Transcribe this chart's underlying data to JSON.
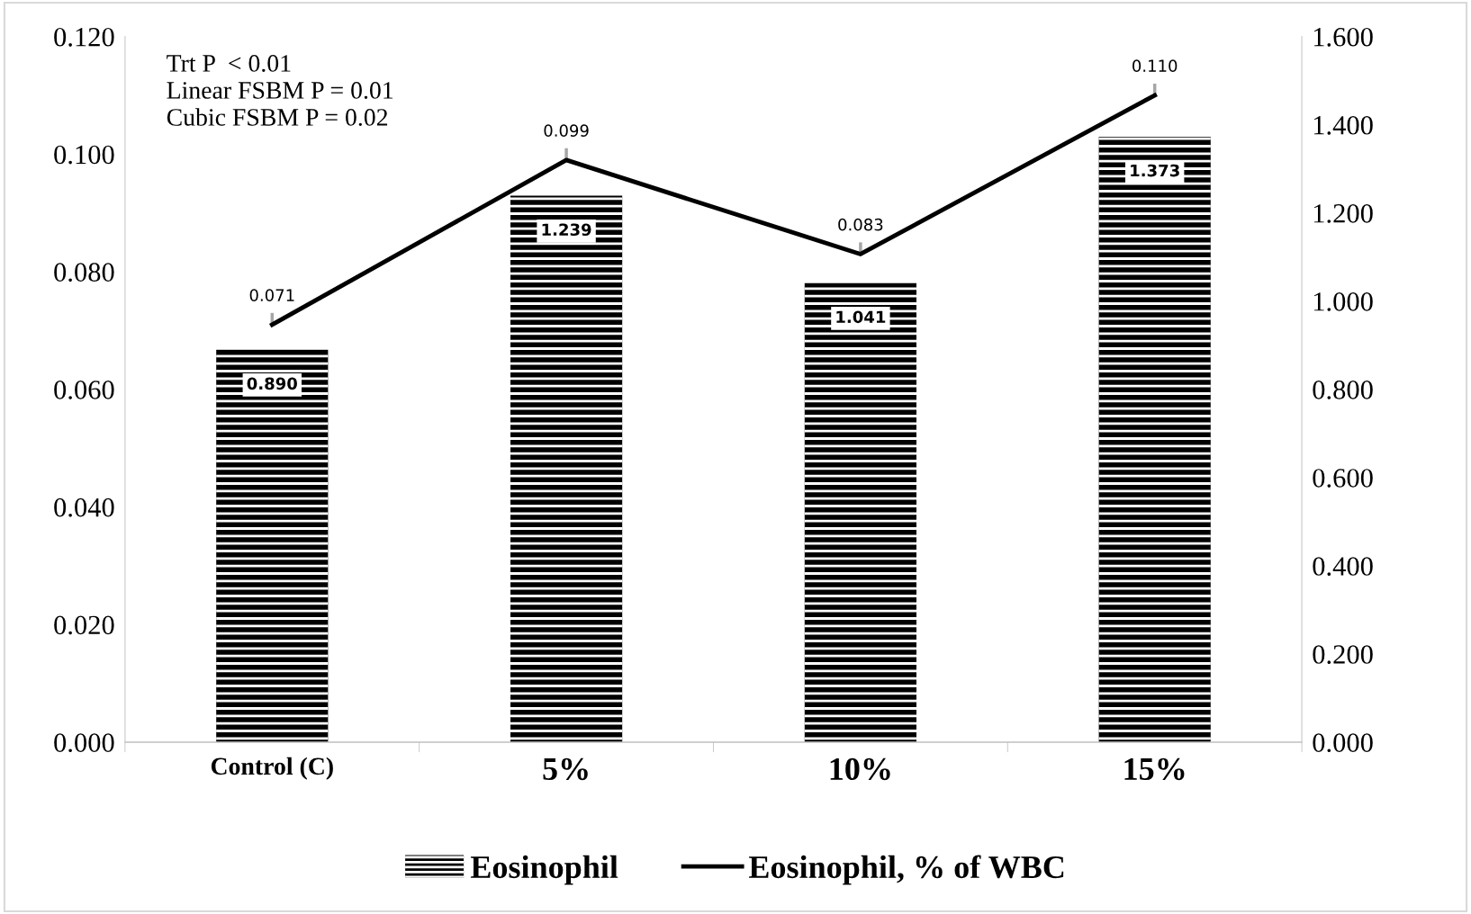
{
  "chart_data": {
    "type": "bar",
    "categories": [
      "Control (C)",
      "5%",
      "10%",
      "15%"
    ],
    "series": [
      {
        "name": "Eosinophil",
        "axis": "y2",
        "color": "#000000",
        "values": [
          0.89,
          1.239,
          1.041,
          1.373
        ],
        "value_labels": [
          "0.890",
          "1.239",
          "1.041",
          "1.373"
        ]
      },
      {
        "name": "Eosinophil, % of WBC",
        "type": "line",
        "color": "#000000",
        "values": [
          0.071,
          0.099,
          0.083,
          0.11
        ],
        "value_labels": [
          "0.071",
          "0.099",
          "0.083",
          "0.110"
        ],
        "errors": [
          [
            0.071,
            0.073
          ],
          [
            0.099,
            0.101
          ],
          [
            0.083,
            0.085
          ],
          [
            0.11,
            0.112
          ]
        ]
      }
    ],
    "ylim": [
      0,
      0.12
    ],
    "yticks": [
      {
        "value": 0,
        "label": "0.000"
      },
      {
        "value": 0.02,
        "label": "0.020"
      },
      {
        "value": 0.04,
        "label": "0.040"
      },
      {
        "value": 0.06,
        "label": "0.060"
      },
      {
        "value": 0.08,
        "label": "0.080"
      },
      {
        "value": 0.1,
        "label": "0.100"
      },
      {
        "value": 0.12,
        "label": "0.120"
      }
    ],
    "y2lim": [
      0,
      1.6
    ],
    "y2ticks": [
      {
        "value": 0,
        "label": "0.000"
      },
      {
        "value": 0.2,
        "label": "0.200"
      },
      {
        "value": 0.4,
        "label": "0.400"
      },
      {
        "value": 0.6,
        "label": "0.600"
      },
      {
        "value": 0.8,
        "label": "0.800"
      },
      {
        "value": 1.0,
        "label": "1.000"
      },
      {
        "value": 1.2,
        "label": "1.200"
      },
      {
        "value": 1.4,
        "label": "1.400"
      },
      {
        "value": 1.6,
        "label": "1.600"
      }
    ],
    "annotations": [
      "Trt P  < 0.01",
      "Linear FSBM P = 0.01",
      "Cubic FSBM P = 0.02"
    ],
    "legend": "bottom",
    "grid": false,
    "marker": "none",
    "line_style": "solid"
  }
}
